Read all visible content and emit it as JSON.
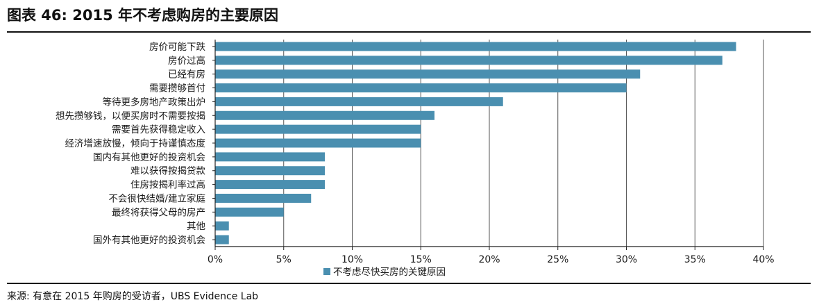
{
  "figure": {
    "title": "图表 46: 2015 年不考虑购房的主要原因",
    "source": "来源: 有意在 2015 年购房的受访者，UBS Evidence Lab"
  },
  "chart_data": {
    "type": "bar",
    "orientation": "horizontal",
    "categories": [
      "房价可能下跌",
      "房价过高",
      "已经有房",
      "需要攒够首付",
      "等待更多房地产政策出炉",
      "想先攒够钱，以便买房时不需要按揭",
      "需要首先获得稳定收入",
      "经济增速放慢，倾向于持谨慎态度",
      "国内有其他更好的投资机会",
      "难以获得按揭贷款",
      "住房按揭利率过高",
      "不会很快结婚/建立家庭",
      "最终将获得父母的房产",
      "其他",
      "国外有其他更好的投资机会"
    ],
    "series": [
      {
        "name": "不考虑尽快买房的关键原因",
        "values": [
          38,
          37,
          31,
          30,
          21,
          16,
          15,
          15,
          8,
          8,
          8,
          7,
          5,
          1,
          1
        ],
        "color": "#4a8fb0"
      }
    ],
    "x_ticks": [
      "0%",
      "5%",
      "10%",
      "15%",
      "20%",
      "25%",
      "30%",
      "35%",
      "40%"
    ],
    "xlim": [
      0,
      40
    ],
    "grid": "vertical",
    "legend": "bottom-center"
  }
}
